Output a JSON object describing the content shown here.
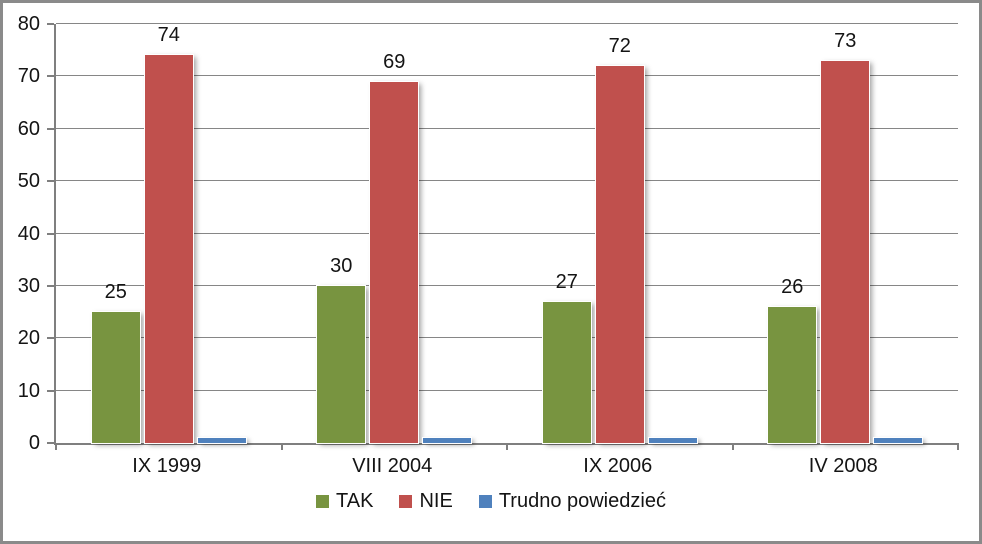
{
  "chart_data": {
    "type": "bar",
    "title": "",
    "xlabel": "",
    "ylabel": "",
    "categories": [
      "IX 1999",
      "VIII 2004",
      "IX 2006",
      "IV 2008"
    ],
    "series": [
      {
        "name": "TAK",
        "color": "#789440",
        "values": [
          25,
          30,
          27,
          26
        ],
        "labels": [
          "25",
          "30",
          "27",
          "26"
        ]
      },
      {
        "name": "NIE",
        "color": "#C0504D",
        "values": [
          74,
          69,
          72,
          73
        ],
        "labels": [
          "74",
          "69",
          "72",
          "73"
        ]
      },
      {
        "name": "Trudno powiedzieć",
        "color": "#4F81BD",
        "values": [
          1,
          1,
          1,
          1
        ],
        "labels": [
          "",
          "",
          "",
          ""
        ]
      }
    ],
    "ylim": [
      0,
      80
    ],
    "yticks": [
      0,
      10,
      20,
      30,
      40,
      50,
      60,
      70,
      80
    ],
    "grid": true,
    "legend_position": "bottom"
  },
  "colors": {
    "gridline": "#868686",
    "axis": "#7F7F7F",
    "frame_border": "#8A8A8A",
    "background": "#FFFFFF",
    "text": "#141414"
  }
}
